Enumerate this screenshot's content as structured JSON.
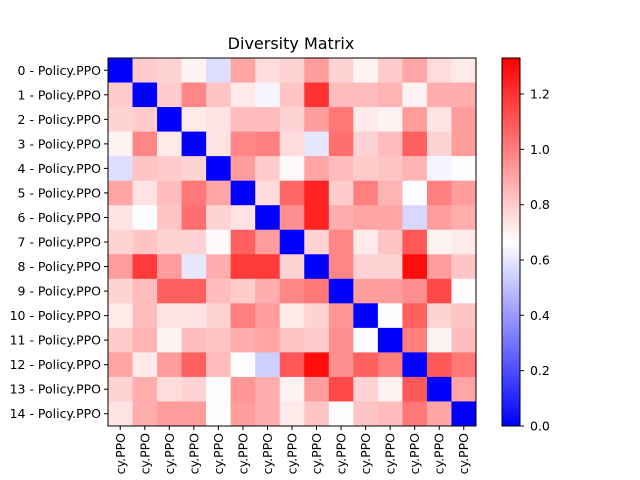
{
  "chart_data": {
    "type": "heatmap",
    "title": "Diversity Matrix",
    "row_labels": [
      "0 - Policy.PPO",
      "1 - Policy.PPO",
      "2 - Policy.PPO",
      "3 - Policy.PPO",
      "4 - Policy.PPO",
      "5 - Policy.PPO",
      "6 - Policy.PPO",
      "7 - Policy.PPO",
      "8 - Policy.PPO",
      "9 - Policy.PPO",
      "10 - Policy.PPO",
      "11 - Policy.PPO",
      "12 - Policy.PPO",
      "13 - Policy.PPO",
      "14 - Policy.PPO"
    ],
    "col_labels": [
      "cy.PPO",
      "cy.PPO",
      "cy.PPO",
      "cy.PPO",
      "cy.PPO",
      "cy.PPO",
      "cy.PPO",
      "cy.PPO",
      "cy.PPO",
      "cy.PPO",
      "cy.PPO",
      "cy.PPO",
      "cy.PPO",
      "cy.PPO",
      "cy.PPO"
    ],
    "colormap": "bwr",
    "color_min": "#0000ff",
    "color_mid": "#ffffff",
    "color_max": "#ff0000",
    "vmin": 0.0,
    "vmax": 1.33,
    "colorbar_ticks": [
      "0.0",
      "0.2",
      "0.4",
      "0.6",
      "0.8",
      "1.0",
      "1.2"
    ],
    "colorbar_tick_values": [
      0.0,
      0.2,
      0.4,
      0.6,
      0.8,
      1.0,
      1.2
    ],
    "values": [
      [
        0.0,
        0.8,
        0.78,
        0.7,
        0.58,
        0.9,
        0.76,
        0.78,
        0.92,
        0.78,
        0.7,
        0.8,
        0.9,
        0.76,
        0.72
      ],
      [
        0.8,
        0.0,
        0.8,
        0.98,
        0.82,
        0.72,
        0.64,
        0.82,
        1.2,
        0.84,
        0.84,
        0.86,
        0.7,
        0.88,
        0.88
      ],
      [
        0.78,
        0.8,
        0.0,
        0.72,
        0.74,
        0.84,
        0.84,
        0.78,
        0.92,
        1.02,
        0.72,
        0.7,
        0.92,
        0.74,
        0.92
      ],
      [
        0.7,
        0.98,
        0.72,
        0.0,
        0.74,
        0.98,
        1.0,
        0.76,
        0.6,
        1.04,
        0.78,
        0.84,
        1.08,
        0.78,
        0.92
      ],
      [
        0.58,
        0.82,
        0.8,
        0.78,
        0.0,
        0.92,
        0.8,
        0.68,
        0.9,
        0.84,
        0.8,
        0.82,
        0.86,
        0.64,
        0.66
      ],
      [
        0.9,
        0.74,
        0.84,
        1.02,
        0.9,
        0.0,
        0.76,
        1.06,
        1.24,
        0.8,
        1.0,
        0.86,
        0.66,
        1.0,
        0.92
      ],
      [
        0.74,
        0.66,
        0.82,
        1.04,
        0.78,
        0.74,
        0.0,
        0.96,
        1.24,
        0.88,
        0.9,
        0.9,
        0.56,
        0.92,
        0.88
      ],
      [
        0.78,
        0.82,
        0.78,
        0.78,
        0.68,
        1.08,
        0.92,
        0.0,
        0.78,
        0.98,
        0.72,
        0.82,
        1.1,
        0.7,
        0.72
      ],
      [
        0.92,
        1.18,
        0.92,
        0.6,
        0.88,
        1.18,
        1.18,
        0.78,
        0.0,
        0.98,
        0.78,
        0.78,
        1.3,
        0.92,
        0.82
      ],
      [
        0.78,
        0.84,
        1.08,
        1.08,
        0.84,
        0.8,
        0.88,
        0.98,
        1.02,
        0.0,
        0.92,
        0.92,
        0.96,
        1.14,
        0.66
      ],
      [
        0.72,
        0.84,
        0.74,
        0.74,
        0.78,
        1.0,
        0.92,
        0.72,
        0.78,
        0.94,
        0.0,
        0.66,
        1.08,
        0.78,
        0.82
      ],
      [
        0.8,
        0.86,
        0.7,
        0.84,
        0.82,
        0.88,
        0.9,
        0.82,
        0.8,
        0.96,
        0.66,
        0.0,
        1.0,
        0.7,
        0.84
      ],
      [
        0.9,
        0.72,
        0.92,
        1.08,
        0.84,
        0.66,
        0.54,
        1.1,
        1.3,
        0.96,
        1.08,
        1.0,
        0.0,
        1.1,
        1.02
      ],
      [
        0.78,
        0.88,
        0.76,
        0.78,
        0.66,
        0.94,
        0.88,
        0.7,
        0.92,
        1.14,
        0.78,
        0.7,
        1.1,
        0.0,
        0.9
      ],
      [
        0.74,
        0.88,
        0.92,
        0.92,
        0.66,
        0.92,
        0.88,
        0.72,
        0.82,
        0.66,
        0.82,
        0.84,
        1.02,
        0.9,
        0.0
      ]
    ]
  }
}
